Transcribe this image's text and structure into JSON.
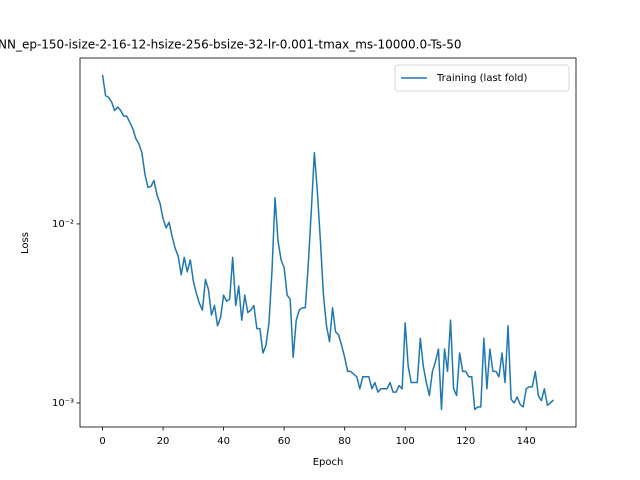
{
  "chart_data": {
    "type": "line",
    "title": "NN_ep-150-isize-2-16-12-hsize-256-bsize-32-lr-0.001-tmax_ms-10000.0-Ts-50",
    "x_label": "Epoch",
    "y_label": "Loss",
    "y_scale": "log",
    "legend": "upper right",
    "xlim": [
      -7.45,
      156.45
    ],
    "xticks": [
      0,
      20,
      40,
      60,
      80,
      100,
      120,
      140
    ],
    "ylim": [
      0.000734,
      0.0845
    ],
    "yticks": [
      {
        "value": 0.001,
        "label": "10⁻³"
      },
      {
        "value": 0.01,
        "label": "10⁻²"
      }
    ],
    "x": [
      0,
      1,
      2,
      3,
      4,
      5,
      6,
      7,
      8,
      9,
      10,
      11,
      12,
      13,
      14,
      15,
      16,
      17,
      18,
      19,
      20,
      21,
      22,
      23,
      24,
      25,
      26,
      27,
      28,
      29,
      30,
      31,
      32,
      33,
      34,
      35,
      36,
      37,
      38,
      39,
      40,
      41,
      42,
      43,
      44,
      45,
      46,
      47,
      48,
      49,
      50,
      51,
      52,
      53,
      54,
      55,
      56,
      57,
      58,
      59,
      60,
      61,
      62,
      63,
      64,
      65,
      66,
      67,
      68,
      69,
      70,
      71,
      72,
      73,
      74,
      75,
      76,
      77,
      78,
      79,
      80,
      81,
      82,
      83,
      84,
      85,
      86,
      87,
      88,
      89,
      90,
      91,
      92,
      93,
      94,
      95,
      96,
      97,
      98,
      99,
      100,
      101,
      102,
      103,
      104,
      105,
      106,
      107,
      108,
      109,
      110,
      111,
      112,
      113,
      114,
      115,
      116,
      117,
      118,
      119,
      120,
      121,
      122,
      123,
      124,
      125,
      126,
      127,
      128,
      129,
      130,
      131,
      132,
      133,
      134,
      135,
      136,
      137,
      138,
      139,
      140,
      141,
      142,
      143,
      144,
      145,
      146,
      147,
      148,
      149
    ],
    "series": [
      {
        "name": "Training (last fold)",
        "color": "#1f77b4",
        "values": [
          0.068,
          0.052,
          0.051,
          0.048,
          0.043,
          0.045,
          0.043,
          0.04,
          0.04,
          0.037,
          0.034,
          0.03,
          0.028,
          0.025,
          0.019,
          0.016,
          0.0162,
          0.0175,
          0.0145,
          0.013,
          0.0107,
          0.0095,
          0.0102,
          0.0085,
          0.0073,
          0.0066,
          0.0052,
          0.0065,
          0.0054,
          0.0063,
          0.0048,
          0.0041,
          0.0036,
          0.0033,
          0.0049,
          0.0043,
          0.0031,
          0.0035,
          0.0027,
          0.003,
          0.004,
          0.0037,
          0.0038,
          0.0065,
          0.0035,
          0.0045,
          0.0029,
          0.004,
          0.0032,
          0.0033,
          0.0035,
          0.0026,
          0.0026,
          0.0019,
          0.0021,
          0.0028,
          0.0055,
          0.014,
          0.008,
          0.0063,
          0.0057,
          0.004,
          0.0038,
          0.0018,
          0.0029,
          0.0033,
          0.0034,
          0.0034,
          0.006,
          0.012,
          0.025,
          0.015,
          0.008,
          0.004,
          0.0027,
          0.0022,
          0.0034,
          0.0025,
          0.0024,
          0.0021,
          0.0018,
          0.0015,
          0.0015,
          0.00145,
          0.0014,
          0.0012,
          0.0014,
          0.0014,
          0.0014,
          0.0012,
          0.0013,
          0.00115,
          0.0012,
          0.0012,
          0.0012,
          0.0013,
          0.00115,
          0.00115,
          0.00125,
          0.0012,
          0.0028,
          0.0016,
          0.0013,
          0.0013,
          0.0013,
          0.0023,
          0.0016,
          0.0013,
          0.0011,
          0.0015,
          0.0017,
          0.002,
          0.00092,
          0.002,
          0.0015,
          0.0029,
          0.0012,
          0.0011,
          0.0019,
          0.0015,
          0.0015,
          0.0014,
          0.0014,
          0.00092,
          0.00095,
          0.00095,
          0.0023,
          0.0012,
          0.002,
          0.0015,
          0.0015,
          0.0014,
          0.0019,
          0.0013,
          0.0027,
          0.00105,
          0.001,
          0.00108,
          0.00098,
          0.00095,
          0.0012,
          0.00123,
          0.00123,
          0.0015,
          0.0011,
          0.00103,
          0.0012,
          0.00097,
          0.001,
          0.00104
        ]
      }
    ]
  }
}
